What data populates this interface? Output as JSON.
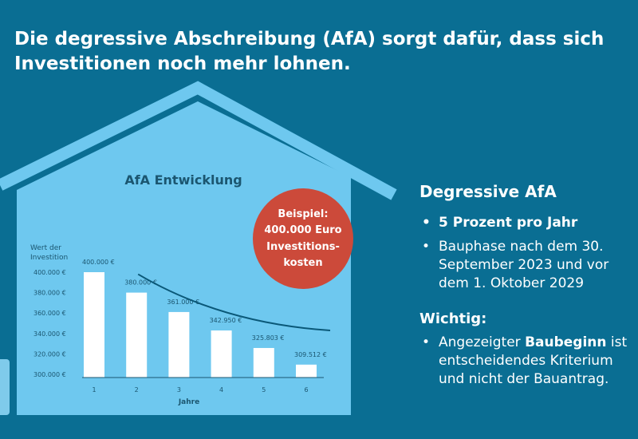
{
  "headline": {
    "line1": "Die degressive Abschreibung (AfA) sorgt dafür, dass sich",
    "line2": "Investitionen noch mehr lohnen."
  },
  "colors": {
    "background": "#0a6e93",
    "house_fill": "#6ec8ef",
    "bars": "#ffffff",
    "trend_line": "#0a5878",
    "badge": "#cc4a3a",
    "text_dark": "#1b5670"
  },
  "badge": {
    "lines": [
      "Beispiel:",
      "400.000 Euro",
      "Investitions-",
      "kosten"
    ]
  },
  "side_panel": {
    "title": "Degressive AfA",
    "bullets": [
      {
        "text": "5 Prozent pro Jahr"
      },
      {
        "line1": "Bauphase nach dem 30.",
        "line2": "September 2023 und vor",
        "line3": "dem 1. Oktober 2029"
      }
    ],
    "important_title": "Wichtig:",
    "important_item": {
      "pre": "Angezeigter ",
      "keyword": "Baubeginn",
      "post": " ist",
      "line2": "entscheidendes Kriterium",
      "line3": "und nicht der Bauantrag."
    },
    "bullet_glyph": "•"
  },
  "chart_data": {
    "type": "bar",
    "title": "AfA Entwicklung",
    "ylabel_lines": [
      "Wert der",
      "Investition"
    ],
    "xlabel": "Jahre",
    "categories": [
      "1",
      "2",
      "3",
      "4",
      "5",
      "6"
    ],
    "values": [
      400000,
      380000,
      361000,
      342950,
      325803,
      309512
    ],
    "value_labels": [
      "400.000 €",
      "380.000  €",
      "361.000 €",
      "342.950 €",
      "325.803 €",
      "309.512 €"
    ],
    "yticks": [
      300000,
      320000,
      340000,
      360000,
      380000,
      400000
    ],
    "ytick_labels": [
      "300.000 €",
      "320.000 €",
      "340.000 €",
      "360.000 €",
      "380.000 €",
      "400.000 €"
    ],
    "ylim": [
      300000,
      410000
    ],
    "trend_line": "declining",
    "grid": false
  }
}
